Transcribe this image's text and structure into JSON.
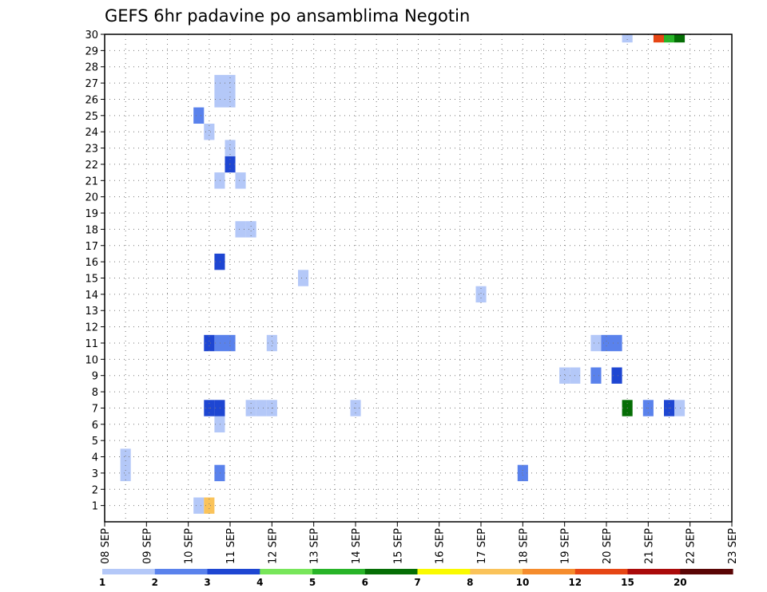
{
  "chart_data": {
    "type": "heatmap",
    "title": "GEFS 6hr padavine po ansamblima Negotin",
    "xlabel": "",
    "ylabel": "",
    "x_ticks": [
      "08 SEP",
      "09 SEP",
      "10 SEP",
      "11 SEP",
      "12 SEP",
      "13 SEP",
      "14 SEP",
      "15 SEP",
      "16 SEP",
      "17 SEP",
      "18 SEP",
      "19 SEP",
      "20 SEP",
      "21 SEP",
      "22 SEP",
      "23 SEP"
    ],
    "xlim": [
      8.0,
      23.0
    ],
    "y_ticks": [
      1,
      2,
      3,
      4,
      5,
      6,
      7,
      8,
      9,
      10,
      11,
      12,
      13,
      14,
      15,
      16,
      17,
      18,
      19,
      20,
      21,
      22,
      23,
      24,
      25,
      26,
      27,
      28,
      29,
      30
    ],
    "ylim": [
      0,
      30
    ],
    "grid": true,
    "colorbar": {
      "position": "bottom",
      "labels": [
        "1",
        "2",
        "3",
        "4",
        "5",
        "6",
        "7",
        "8",
        "10",
        "12",
        "15",
        "20"
      ],
      "colors": [
        "#b4c8f8",
        "#5a82ec",
        "#1e46d2",
        "#78e65a",
        "#28b428",
        "#056e05",
        "#fafa00",
        "#fac35a",
        "#f58c2d",
        "#e64614",
        "#aa0a0a",
        "#5a0505"
      ]
    },
    "cells": [
      {
        "day": 8.5,
        "y0": 2.5,
        "y1": 4.5,
        "value": 1.5
      },
      {
        "day": 10.25,
        "y0": 0.5,
        "y1": 1.5,
        "value": 1.5
      },
      {
        "day": 10.5,
        "y0": 0.5,
        "y1": 1.5,
        "value": 8.5
      },
      {
        "day": 10.75,
        "y0": 2.5,
        "y1": 3.5,
        "value": 2.5
      },
      {
        "day": 10.75,
        "y0": 5.5,
        "y1": 6.5,
        "value": 1.5
      },
      {
        "day": 10.5,
        "y0": 6.5,
        "y1": 7.5,
        "value": 3.5
      },
      {
        "day": 10.75,
        "y0": 6.5,
        "y1": 7.5,
        "value": 3.5
      },
      {
        "day": 10.5,
        "y0": 10.5,
        "y1": 11.5,
        "value": 3.5
      },
      {
        "day": 10.75,
        "y0": 10.5,
        "y1": 11.5,
        "value": 2.5
      },
      {
        "day": 11.0,
        "y0": 10.5,
        "y1": 11.5,
        "value": 2.5
      },
      {
        "day": 10.75,
        "y0": 15.5,
        "y1": 16.5,
        "value": 3.5
      },
      {
        "day": 11.25,
        "y0": 17.5,
        "y1": 18.5,
        "value": 1.5
      },
      {
        "day": 11.5,
        "y0": 17.5,
        "y1": 18.5,
        "value": 1.5
      },
      {
        "day": 10.75,
        "y0": 20.5,
        "y1": 21.5,
        "value": 1.5
      },
      {
        "day": 11.25,
        "y0": 20.5,
        "y1": 21.5,
        "value": 1.5
      },
      {
        "day": 11.0,
        "y0": 21.5,
        "y1": 22.5,
        "value": 3.5
      },
      {
        "day": 11.0,
        "y0": 22.5,
        "y1": 23.5,
        "value": 1.5
      },
      {
        "day": 10.5,
        "y0": 23.5,
        "y1": 24.5,
        "value": 1.5
      },
      {
        "day": 10.25,
        "y0": 24.5,
        "y1": 25.5,
        "value": 2.5
      },
      {
        "day": 10.75,
        "y0": 25.5,
        "y1": 27.5,
        "value": 1.5
      },
      {
        "day": 11.0,
        "y0": 25.5,
        "y1": 27.5,
        "value": 1.5
      },
      {
        "day": 11.5,
        "y0": 6.5,
        "y1": 7.5,
        "value": 1.5
      },
      {
        "day": 11.75,
        "y0": 6.5,
        "y1": 7.5,
        "value": 1.5
      },
      {
        "day": 12.0,
        "y0": 6.5,
        "y1": 7.5,
        "value": 1.5
      },
      {
        "day": 12.0,
        "y0": 10.5,
        "y1": 11.5,
        "value": 1.5
      },
      {
        "day": 12.75,
        "y0": 14.5,
        "y1": 15.5,
        "value": 1.5
      },
      {
        "day": 14.0,
        "y0": 6.5,
        "y1": 7.5,
        "value": 1.5
      },
      {
        "day": 17.0,
        "y0": 13.5,
        "y1": 14.5,
        "value": 1.5
      },
      {
        "day": 18.0,
        "y0": 2.5,
        "y1": 3.5,
        "value": 2.5
      },
      {
        "day": 19.0,
        "y0": 8.5,
        "y1": 9.5,
        "value": 1.5
      },
      {
        "day": 19.25,
        "y0": 8.5,
        "y1": 9.5,
        "value": 1.5
      },
      {
        "day": 19.75,
        "y0": 8.5,
        "y1": 9.5,
        "value": 2.5
      },
      {
        "day": 20.25,
        "y0": 8.5,
        "y1": 9.5,
        "value": 3.5
      },
      {
        "day": 19.75,
        "y0": 10.5,
        "y1": 11.5,
        "value": 1.5
      },
      {
        "day": 20.0,
        "y0": 10.5,
        "y1": 11.5,
        "value": 2.5
      },
      {
        "day": 20.25,
        "y0": 10.5,
        "y1": 11.5,
        "value": 2.5
      },
      {
        "day": 20.5,
        "y0": 6.5,
        "y1": 7.5,
        "value": 6.5
      },
      {
        "day": 21.0,
        "y0": 6.5,
        "y1": 7.5,
        "value": 2.5
      },
      {
        "day": 21.5,
        "y0": 6.5,
        "y1": 7.5,
        "value": 3.5
      },
      {
        "day": 21.75,
        "y0": 6.5,
        "y1": 7.5,
        "value": 1.5
      },
      {
        "day": 20.5,
        "y0": 29.5,
        "y1": 30.0,
        "value": 1.5
      },
      {
        "day": 21.25,
        "y0": 29.5,
        "y1": 30.0,
        "value": 13.5
      },
      {
        "day": 21.5,
        "y0": 29.5,
        "y1": 30.0,
        "value": 5.5
      },
      {
        "day": 21.75,
        "y0": 29.5,
        "y1": 30.0,
        "value": 6.5
      }
    ]
  }
}
